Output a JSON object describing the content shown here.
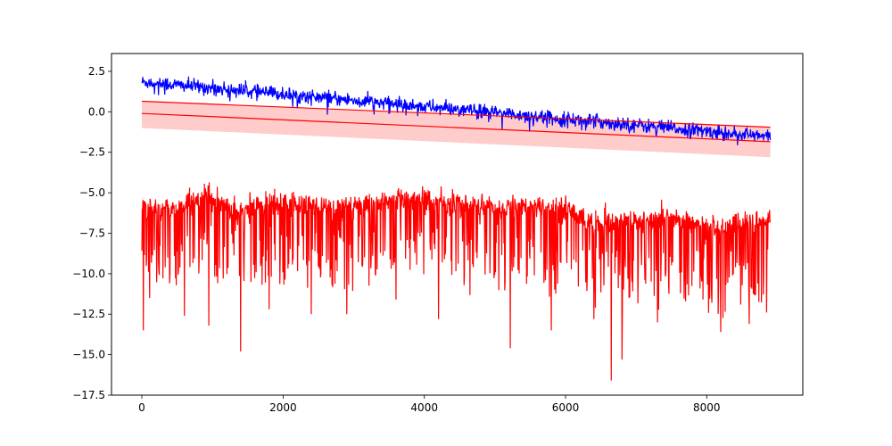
{
  "chart_data": {
    "type": "line",
    "title": "",
    "xlabel": "",
    "ylabel": "",
    "xlim": [
      -430,
      9360
    ],
    "ylim": [
      -17.5,
      3.6
    ],
    "x_ticks": [
      0,
      2000,
      4000,
      6000,
      8000
    ],
    "x_tick_labels": [
      "0",
      "2000",
      "4000",
      "6000",
      "8000"
    ],
    "y_ticks": [
      2.5,
      0.0,
      -2.5,
      -5.0,
      -7.5,
      -10.0,
      -12.5,
      -15.0,
      -17.5
    ],
    "y_tick_labels": [
      "2.5",
      "0.0",
      "−2.5",
      "−5.0",
      "−7.5",
      "−10.0",
      "−12.5",
      "−15.0",
      "−17.5"
    ],
    "grid": false,
    "legend": "none",
    "colors": {
      "noisy_signal": "#0000ff",
      "fit_band": "#ff0000",
      "fit_band_fill": "rgba(255,0,0,0.2)",
      "lower_series": "#ff0000"
    },
    "series": [
      {
        "kind": "noisy_trend",
        "color": "#0000ff",
        "x": [
          0,
          8900
        ],
        "trend_y": [
          1.85,
          -1.55
        ],
        "noise_std": 0.22,
        "n_points": 1400
      },
      {
        "kind": "band_center",
        "color": "#ff0000",
        "x": [
          0,
          8900
        ],
        "y": [
          -0.1,
          -1.85
        ]
      },
      {
        "kind": "band_upper_line",
        "color": "#ff0000",
        "x": [
          0,
          8900
        ],
        "y": [
          0.65,
          -0.95
        ]
      },
      {
        "kind": "band_fill",
        "color": "rgba(255,0,0,0.2)",
        "x": [
          0,
          8900
        ],
        "upper": [
          0.65,
          -0.95
        ],
        "lower": [
          -1.0,
          -2.8
        ]
      },
      {
        "kind": "spiky_signal",
        "color": "#ff0000",
        "x": [
          0,
          8900
        ],
        "baseline": [
          [
            0,
            -6.0
          ],
          [
            500,
            -6.0
          ],
          [
            900,
            -5.2
          ],
          [
            1400,
            -6.2
          ],
          [
            1800,
            -5.5
          ],
          [
            2300,
            -5.8
          ],
          [
            3000,
            -6.0
          ],
          [
            3700,
            -5.3
          ],
          [
            4500,
            -5.7
          ],
          [
            5200,
            -5.9
          ],
          [
            6000,
            -5.9
          ],
          [
            6400,
            -7.0
          ],
          [
            7000,
            -6.8
          ],
          [
            7500,
            -6.5
          ],
          [
            8200,
            -7.3
          ],
          [
            8900,
            -6.6
          ]
        ],
        "spikes": [
          [
            20,
            -13.5
          ],
          [
            110,
            -11.5
          ],
          [
            600,
            -12.6
          ],
          [
            950,
            -13.2
          ],
          [
            1400,
            -14.8
          ],
          [
            1800,
            -12.2
          ],
          [
            2400,
            -12.5
          ],
          [
            2900,
            -12.5
          ],
          [
            3600,
            -11.6
          ],
          [
            4200,
            -12.8
          ],
          [
            5220,
            -14.6
          ],
          [
            5800,
            -13.5
          ],
          [
            6400,
            -12.8
          ],
          [
            6650,
            -16.6
          ],
          [
            6800,
            -15.3
          ],
          [
            7300,
            -13.0
          ],
          [
            7700,
            -11.7
          ],
          [
            8200,
            -13.6
          ],
          [
            8600,
            -13.1
          ],
          [
            8850,
            -12.4
          ]
        ],
        "n_points": 1700
      }
    ]
  }
}
